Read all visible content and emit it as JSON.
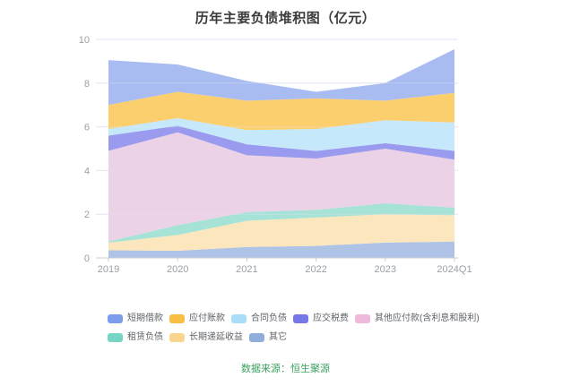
{
  "chart": {
    "title": "历年主要负债堆积图（亿元）"
  },
  "footer": {
    "source": "数据来源：恒生聚源"
  },
  "chart_data": {
    "type": "area",
    "stacked": true,
    "title": "历年主要负债堆积图（亿元）",
    "categories": [
      "2019",
      "2020",
      "2021",
      "2022",
      "2023",
      "2024Q1"
    ],
    "xlabel": "",
    "ylabel": "",
    "ylim": [
      0,
      10
    ],
    "yticks": [
      0,
      2,
      4,
      6,
      8,
      10
    ],
    "grid": true,
    "legend_position": "bottom",
    "stack_note": "series listed top-of-stack first; last series is bottom band",
    "series": [
      {
        "name": "短期借款",
        "color": "#7e9cec",
        "fill": "#a9bcf1",
        "values": [
          2.05,
          1.25,
          0.9,
          0.3,
          0.8,
          2.0
        ]
      },
      {
        "name": "应付账款",
        "color": "#fbbe45",
        "fill": "#fccf6e",
        "values": [
          1.1,
          1.2,
          1.35,
          1.4,
          0.9,
          1.35
        ]
      },
      {
        "name": "合同负债",
        "color": "#a9ddf8",
        "fill": "#c5e8fa",
        "values": [
          0.3,
          0.35,
          0.65,
          1.0,
          1.05,
          1.3
        ]
      },
      {
        "name": "应交税费",
        "color": "#7678e8",
        "fill": "#9a9bee",
        "values": [
          0.7,
          0.3,
          0.5,
          0.35,
          0.25,
          0.4
        ]
      },
      {
        "name": "其他应付款(含利息和股利)",
        "color": "#efb9dc",
        "fill": "#ecd2e7",
        "values": [
          4.15,
          4.25,
          2.6,
          2.35,
          2.5,
          2.2
        ]
      },
      {
        "name": "租赁负债",
        "color": "#76d5c5",
        "fill": "#a6e2d6",
        "values": [
          0.05,
          0.45,
          0.4,
          0.35,
          0.5,
          0.35
        ]
      },
      {
        "name": "长期递延收益",
        "color": "#fad590",
        "fill": "#fbe6bd",
        "values": [
          0.35,
          0.72,
          1.2,
          1.3,
          1.3,
          1.2
        ]
      },
      {
        "name": "其它",
        "color": "#8faedc",
        "fill": "#aec3e6",
        "values": [
          0.35,
          0.33,
          0.5,
          0.55,
          0.7,
          0.75
        ]
      }
    ],
    "axis_colors": {
      "label": "#9aa0a6",
      "axis_line": "#ccccd6",
      "grid_line": "#e3e6f3"
    }
  }
}
